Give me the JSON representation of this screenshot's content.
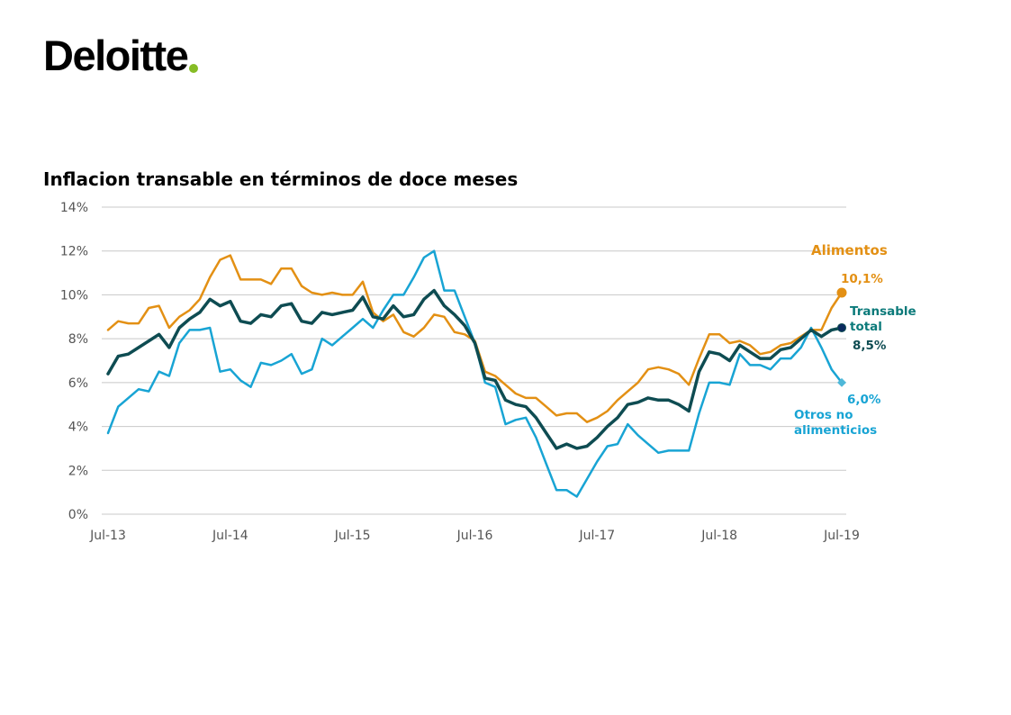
{
  "brand": {
    "name": "Deloitte",
    "dot_color": "#86bc25"
  },
  "chart_data": {
    "type": "line",
    "title": "Inflacion transable en términos de doce meses",
    "xlabel": "",
    "ylabel": "",
    "ylim": [
      0,
      14
    ],
    "yticks": [
      "0%",
      "2%",
      "4%",
      "6%",
      "8%",
      "10%",
      "12%",
      "14%"
    ],
    "ytick_values": [
      0,
      2,
      4,
      6,
      8,
      10,
      12,
      14
    ],
    "xticks": [
      "Jul-13",
      "Jul-14",
      "Jul-15",
      "Jul-16",
      "Jul-17",
      "Jul-18",
      "Jul-19"
    ],
    "grid": true,
    "x_start": "Jul-13",
    "x_end": "Jul-19",
    "series": [
      {
        "name": "Alimentos",
        "color": "#e39014",
        "end_label": "10,1%",
        "values": [
          8.4,
          8.8,
          8.7,
          8.7,
          9.4,
          9.5,
          8.5,
          9.0,
          9.3,
          9.8,
          10.8,
          11.6,
          11.8,
          10.7,
          10.7,
          10.7,
          10.5,
          11.2,
          11.2,
          10.4,
          10.1,
          10.0,
          10.1,
          10.0,
          10.0,
          10.6,
          9.2,
          8.8,
          9.1,
          8.3,
          8.1,
          8.5,
          9.1,
          9.0,
          8.3,
          8.2,
          7.9,
          6.5,
          6.3,
          5.9,
          5.5,
          5.3,
          5.3,
          4.9,
          4.5,
          4.6,
          4.6,
          4.2,
          4.4,
          4.7,
          5.2,
          5.6,
          6.0,
          6.6,
          6.7,
          6.6,
          6.4,
          5.9,
          7.1,
          8.2,
          8.2,
          7.8,
          7.9,
          7.7,
          7.3,
          7.4,
          7.7,
          7.8,
          8.1,
          8.4,
          8.4,
          9.4,
          10.1
        ]
      },
      {
        "name": "Transable total",
        "color": "#0e4c52",
        "end_label": "8,5%",
        "values": [
          6.4,
          7.2,
          7.3,
          7.6,
          7.9,
          8.2,
          7.6,
          8.5,
          8.9,
          9.2,
          9.8,
          9.5,
          9.7,
          8.8,
          8.7,
          9.1,
          9.0,
          9.5,
          9.6,
          8.8,
          8.7,
          9.2,
          9.1,
          9.2,
          9.3,
          9.9,
          9.0,
          8.9,
          9.5,
          9.0,
          9.1,
          9.8,
          10.2,
          9.5,
          9.1,
          8.6,
          7.8,
          6.2,
          6.1,
          5.2,
          5.0,
          4.9,
          4.4,
          3.7,
          3.0,
          3.2,
          3.0,
          3.1,
          3.5,
          4.0,
          4.4,
          5.0,
          5.1,
          5.3,
          5.2,
          5.2,
          5.0,
          4.7,
          6.5,
          7.4,
          7.3,
          7.0,
          7.7,
          7.4,
          7.1,
          7.1,
          7.5,
          7.6,
          8.0,
          8.4,
          8.1,
          8.4,
          8.5
        ]
      },
      {
        "name": "Otros no alimenticios",
        "color": "#18a4d4",
        "end_label": "6,0%",
        "values": [
          3.7,
          4.9,
          5.3,
          5.7,
          5.6,
          6.5,
          6.3,
          7.8,
          8.4,
          8.4,
          8.5,
          6.5,
          6.6,
          6.1,
          5.8,
          6.9,
          6.8,
          7.0,
          7.3,
          6.4,
          6.6,
          8.0,
          7.7,
          8.1,
          8.5,
          8.9,
          8.5,
          9.3,
          10.0,
          10.0,
          10.8,
          11.7,
          12.0,
          10.2,
          10.2,
          9.0,
          7.8,
          6.0,
          5.8,
          4.1,
          4.3,
          4.4,
          3.5,
          2.3,
          1.1,
          1.1,
          0.8,
          1.6,
          2.4,
          3.1,
          3.2,
          4.1,
          3.6,
          3.2,
          2.8,
          2.9,
          2.9,
          2.9,
          4.6,
          6.0,
          6.0,
          5.9,
          7.3,
          6.8,
          6.8,
          6.6,
          7.1,
          7.1,
          7.6,
          8.5,
          7.6,
          6.6,
          6.0
        ]
      }
    ],
    "labels": {
      "alimentos": "Alimentos",
      "alimentos_value": "10,1%",
      "transable_line1": "Transable",
      "transable_line2": "total",
      "transable_value": "8,5%",
      "otros_value": "6,0%",
      "otros_line1": "Otros no",
      "otros_line2": "alimenticios"
    },
    "axis_color": "#c8c8c8"
  }
}
